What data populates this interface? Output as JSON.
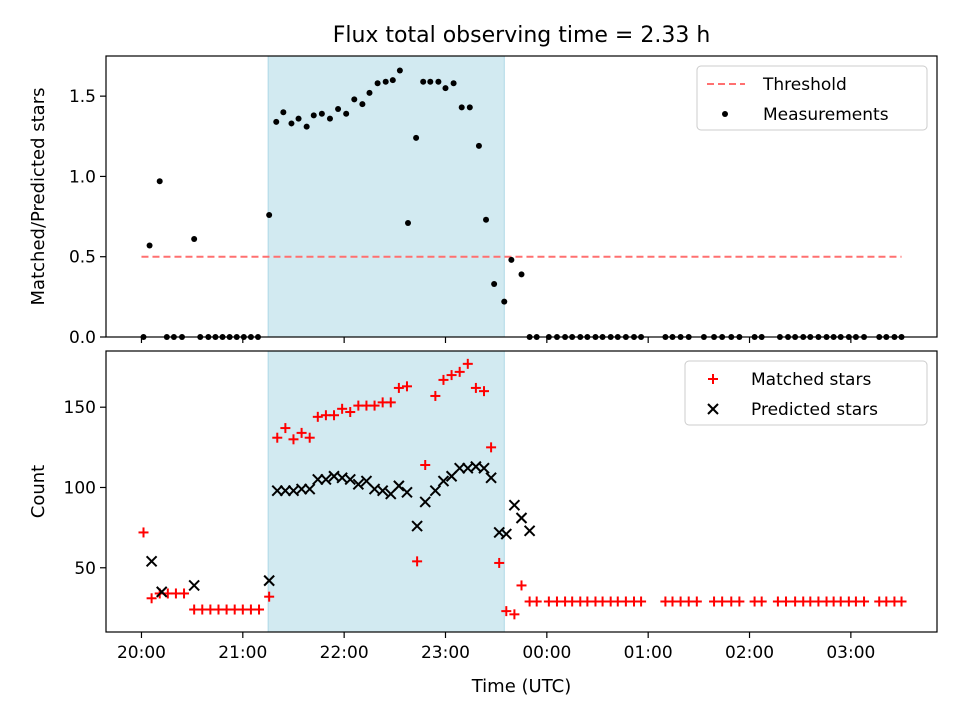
{
  "title": "Flux total observing time = 2.33 h",
  "colors": {
    "threshold": "#ff7070",
    "measurements": "#000000",
    "matched": "#ff0000",
    "predicted": "#000000",
    "shade": "#add8e6"
  },
  "chart_data": [
    {
      "type": "scatter",
      "panel": "top",
      "ylabel": "Matched/Predicted stars",
      "ylim": [
        0,
        1.75
      ],
      "xlim": [
        -0.35,
        7.85
      ],
      "yticks": [
        0.0,
        0.5,
        1.0,
        1.5
      ],
      "ytick_labels": [
        "0.0",
        "0.5",
        "1.0",
        "1.5"
      ],
      "shaded_region": [
        1.25,
        3.58
      ],
      "legend": {
        "placement": "top-right",
        "entries": [
          "Threshold",
          "Measurements"
        ]
      },
      "threshold": {
        "name": "Threshold",
        "y": 0.5,
        "x": [
          0,
          7.5
        ],
        "style": "dashed"
      },
      "series": [
        {
          "name": "Measurements",
          "x": [
            0.02,
            0.08,
            0.18,
            0.25,
            0.32,
            0.4,
            0.52,
            0.58,
            0.66,
            0.73,
            0.8,
            0.87,
            0.94,
            1.01,
            1.08,
            1.15,
            1.26,
            1.33,
            1.4,
            1.48,
            1.55,
            1.63,
            1.7,
            1.78,
            1.86,
            1.94,
            2.02,
            2.1,
            2.18,
            2.25,
            2.33,
            2.41,
            2.48,
            2.55,
            2.63,
            2.71,
            2.78,
            2.85,
            2.93,
            3.0,
            3.08,
            3.16,
            3.24,
            3.33,
            3.4,
            3.48,
            3.58,
            3.65,
            3.75,
            3.83,
            3.9,
            4.02,
            4.1,
            4.18,
            4.25,
            4.33,
            4.4,
            4.48,
            4.55,
            4.63,
            4.7,
            4.78,
            4.86,
            4.93,
            5.17,
            5.24,
            5.32,
            5.4,
            5.55,
            5.65,
            5.73,
            5.82,
            5.9,
            6.05,
            6.12,
            6.3,
            6.38,
            6.45,
            6.53,
            6.6,
            6.68,
            6.76,
            6.83,
            6.9,
            6.98,
            7.05,
            7.13,
            7.28,
            7.35,
            7.43,
            7.5
          ],
          "y": [
            0.0,
            0.57,
            0.97,
            0.0,
            0.0,
            0.0,
            0.61,
            0.0,
            0.0,
            0.0,
            0.0,
            0.0,
            0.0,
            0.0,
            0.0,
            0.0,
            0.76,
            1.34,
            1.4,
            1.33,
            1.36,
            1.31,
            1.38,
            1.39,
            1.36,
            1.42,
            1.39,
            1.48,
            1.45,
            1.52,
            1.58,
            1.59,
            1.6,
            1.66,
            0.71,
            1.24,
            1.59,
            1.59,
            1.59,
            1.55,
            1.58,
            1.43,
            1.43,
            1.19,
            0.73,
            0.33,
            0.22,
            0.48,
            0.39,
            0.0,
            0.0,
            0.0,
            0.0,
            0.0,
            0.0,
            0.0,
            0.0,
            0.0,
            0.0,
            0.0,
            0.0,
            0.0,
            0.0,
            0.0,
            0.0,
            0.0,
            0.0,
            0.0,
            0.0,
            0.0,
            0.0,
            0.0,
            0.0,
            0.0,
            0.0,
            0.0,
            0.0,
            0.0,
            0.0,
            0.0,
            0.0,
            0.0,
            0.0,
            0.0,
            0.0,
            0.0,
            0.0,
            0.0,
            0.0,
            0.0,
            0.0
          ]
        }
      ]
    },
    {
      "type": "scatter",
      "panel": "bottom",
      "xlabel": "Time (UTC)",
      "ylabel": "Count",
      "ylim": [
        10,
        185
      ],
      "xlim": [
        -0.35,
        7.85
      ],
      "yticks": [
        50,
        100,
        150
      ],
      "ytick_labels": [
        "50",
        "100",
        "150"
      ],
      "xticks": [
        0,
        1,
        2,
        3,
        4,
        5,
        6,
        7
      ],
      "xtick_labels": [
        "20:00",
        "21:00",
        "22:00",
        "23:00",
        "00:00",
        "01:00",
        "02:00",
        "03:00"
      ],
      "shaded_region": [
        1.25,
        3.58
      ],
      "legend": {
        "placement": "top-right",
        "entries": [
          "Matched stars",
          "Predicted stars"
        ]
      },
      "series": [
        {
          "name": "Matched stars",
          "marker": "plus",
          "x": [
            0.02,
            0.1,
            0.18,
            0.26,
            0.34,
            0.42,
            0.52,
            0.6,
            0.68,
            0.76,
            0.84,
            0.92,
            1.0,
            1.08,
            1.16,
            1.26,
            1.34,
            1.42,
            1.5,
            1.58,
            1.66,
            1.74,
            1.82,
            1.9,
            1.98,
            2.06,
            2.14,
            2.22,
            2.3,
            2.38,
            2.46,
            2.54,
            2.62,
            2.72,
            2.8,
            2.9,
            2.98,
            3.06,
            3.14,
            3.22,
            3.3,
            3.38,
            3.45,
            3.53,
            3.6,
            3.68,
            3.75,
            3.83,
            3.9,
            4.02,
            4.1,
            4.18,
            4.25,
            4.33,
            4.4,
            4.48,
            4.55,
            4.63,
            4.7,
            4.78,
            4.86,
            4.93,
            5.17,
            5.24,
            5.32,
            5.4,
            5.48,
            5.65,
            5.73,
            5.82,
            5.9,
            6.05,
            6.12,
            6.28,
            6.36,
            6.45,
            6.53,
            6.6,
            6.68,
            6.76,
            6.83,
            6.9,
            6.98,
            7.05,
            7.13,
            7.28,
            7.35,
            7.43,
            7.5
          ],
          "y": [
            72,
            31,
            34,
            34,
            34,
            34,
            24,
            24,
            24,
            24,
            24,
            24,
            24,
            24,
            24,
            32,
            131,
            137,
            130,
            134,
            131,
            144,
            145,
            145,
            149,
            147,
            151,
            151,
            151,
            153,
            153,
            162,
            163,
            54,
            114,
            157,
            167,
            170,
            172,
            177,
            162,
            160,
            125,
            53,
            23,
            21,
            39,
            29,
            29,
            29,
            29,
            29,
            29,
            29,
            29,
            29,
            29,
            29,
            29,
            29,
            29,
            29,
            29,
            29,
            29,
            29,
            29,
            29,
            29,
            29,
            29,
            29,
            29,
            29,
            29,
            29,
            29,
            29,
            29,
            29,
            29,
            29,
            29,
            29,
            29,
            29,
            29,
            29,
            29
          ]
        },
        {
          "name": "Predicted stars",
          "marker": "x",
          "x": [
            0.1,
            0.2,
            0.52,
            1.26,
            1.34,
            1.42,
            1.5,
            1.58,
            1.66,
            1.74,
            1.82,
            1.9,
            1.98,
            2.06,
            2.14,
            2.22,
            2.3,
            2.38,
            2.46,
            2.54,
            2.62,
            2.72,
            2.8,
            2.9,
            2.98,
            3.06,
            3.14,
            3.22,
            3.3,
            3.38,
            3.45,
            3.53,
            3.6,
            3.68,
            3.75,
            3.83
          ],
          "y": [
            54,
            35,
            39,
            42,
            98,
            98,
            98,
            99,
            99,
            105,
            105,
            107,
            106,
            105,
            102,
            104,
            99,
            98,
            96,
            101,
            97,
            76,
            91,
            98,
            104,
            107,
            112,
            112,
            113,
            112,
            106,
            72,
            71,
            89,
            81,
            73
          ]
        }
      ]
    }
  ]
}
